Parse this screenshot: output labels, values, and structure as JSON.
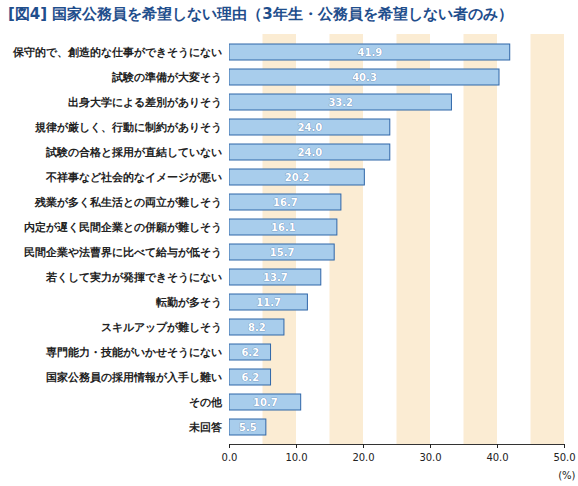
{
  "chart_data": {
    "type": "bar",
    "orientation": "horizontal",
    "title": "[図4] 国家公務員を希望しない理由（3年生・公務員を希望しない者のみ）",
    "categories": [
      "保守的で、創造的な仕事ができそうにない",
      "試験の準備が大変そう",
      "出身大学による差別がありそう",
      "規律が厳しく、行動に制約がありそう",
      "試験の合格と採用が直結していない",
      "不祥事など社会的なイメージが悪い",
      "残業が多く私生活との両立が難しそう",
      "内定が遅く民間企業との併願が難しそう",
      "民間企業や法曹界に比べて給与が低そう",
      "若くして実力が発揮できそうにない",
      "転勤が多そう",
      "スキルアップが難しそう",
      "専門能力・技能がいかせそうにない",
      "国家公務員の採用情報が入手し難い",
      "その他",
      "未回答"
    ],
    "values": [
      41.9,
      40.3,
      33.2,
      24.0,
      24.0,
      20.2,
      16.7,
      16.1,
      15.7,
      13.7,
      11.7,
      8.2,
      6.2,
      6.2,
      10.7,
      5.5
    ],
    "value_labels": [
      "41.9",
      "40.3",
      "33.2",
      "24.0",
      "24.0",
      "20.2",
      "16.7",
      "16.1",
      "15.7",
      "13.7",
      "11.7",
      "8.2",
      "6.2",
      "6.2",
      "10.7",
      "5.5"
    ],
    "data_labels": true,
    "color": "#a8cdec",
    "x_label": "(%)",
    "xlim": [
      0,
      50
    ],
    "xticks": [
      {
        "value": 0,
        "label": "0.0"
      },
      {
        "value": 10,
        "label": "10.0"
      },
      {
        "value": 20,
        "label": "20.0"
      },
      {
        "value": 30,
        "label": "30.0"
      },
      {
        "value": 40,
        "label": "40.0"
      },
      {
        "value": 50,
        "label": "50.0"
      }
    ],
    "grid": true
  }
}
